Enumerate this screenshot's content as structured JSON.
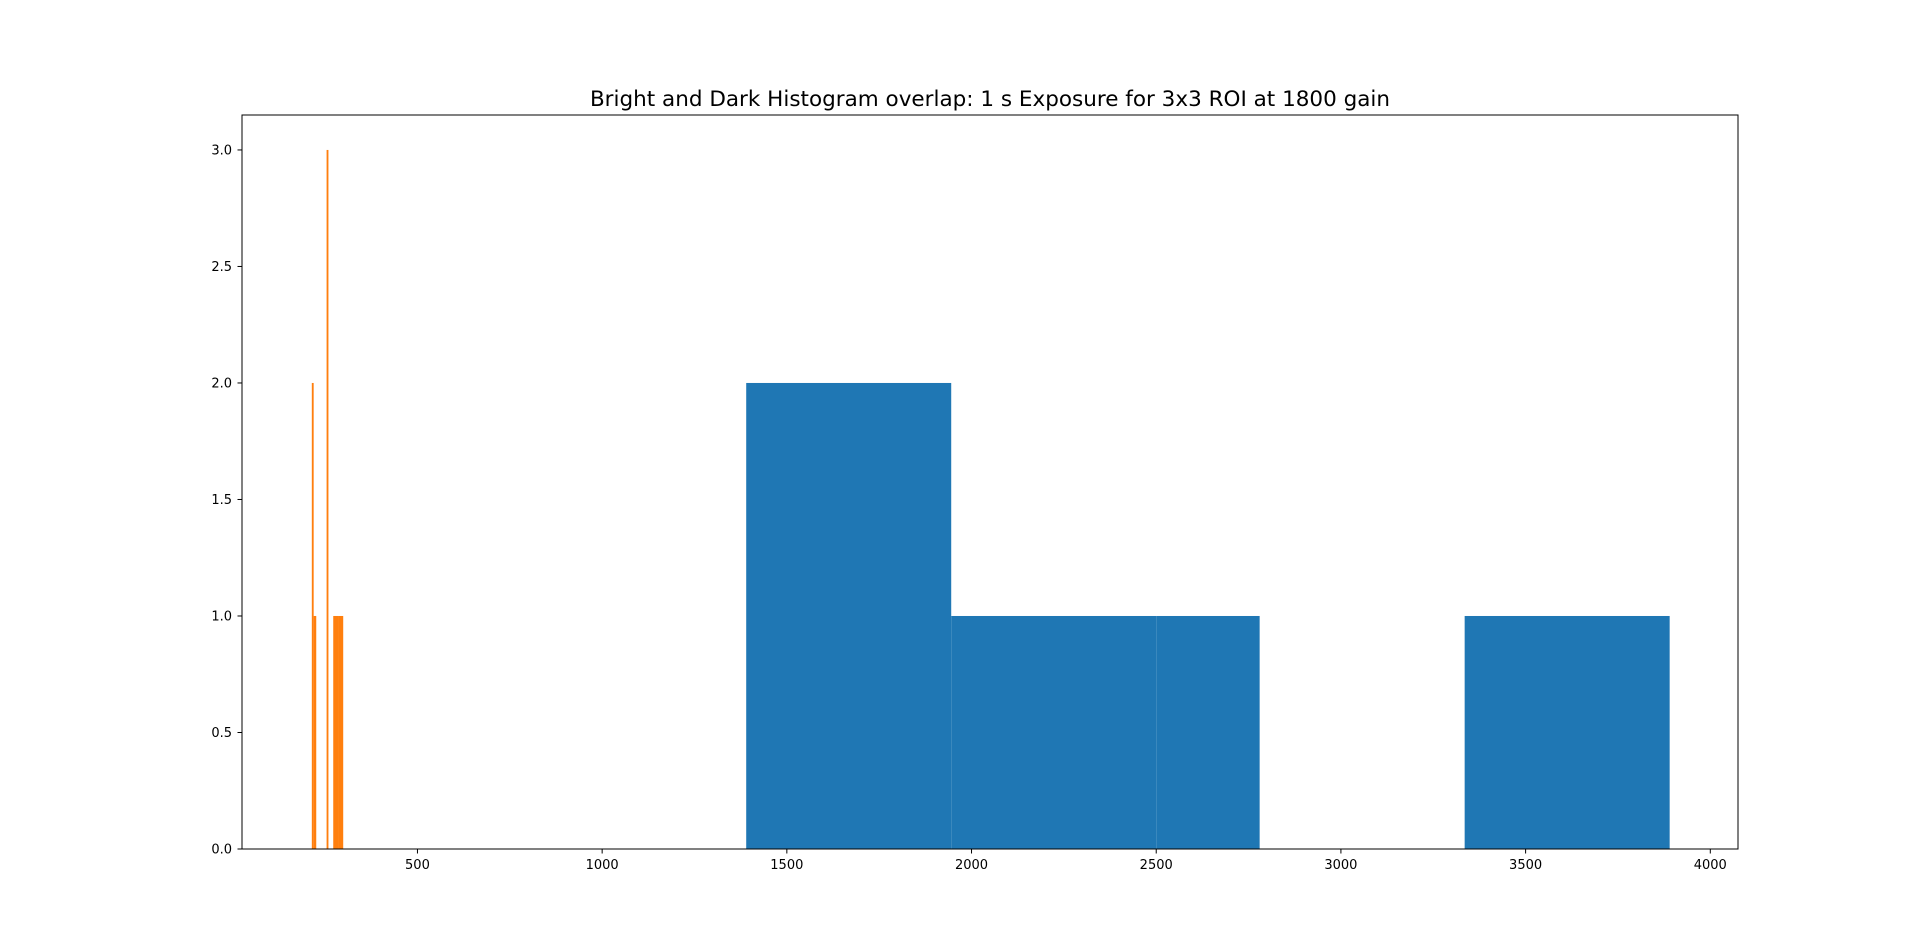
{
  "chart_data": {
    "type": "bar",
    "title": "Bright and Dark Histogram overlap: 1 s Exposure for 3x3 ROI at 1800 gain",
    "xlabel": "",
    "ylabel": "",
    "xlim": [
      25,
      4075
    ],
    "ylim": [
      0,
      3.15
    ],
    "grid": false,
    "x_ticks": [
      500,
      1000,
      1500,
      2000,
      2500,
      3000,
      3500,
      4000
    ],
    "y_ticks": [
      0.0,
      0.5,
      1.0,
      1.5,
      2.0,
      2.5,
      3.0
    ],
    "series": [
      {
        "color": "#1f77b4",
        "bins": [
          {
            "x0": 1390,
            "x1": 1945,
            "count": 2
          },
          {
            "x0": 1945,
            "x1": 2500,
            "count": 1
          },
          {
            "x0": 2500,
            "x1": 2780,
            "count": 1
          },
          {
            "x0": 2780,
            "x1": 3335,
            "count": 0
          },
          {
            "x0": 3335,
            "x1": 3890,
            "count": 1
          }
        ]
      },
      {
        "color": "#ff7f0e",
        "bins": [
          {
            "x0": 214,
            "x1": 219,
            "count": 2
          },
          {
            "x0": 219,
            "x1": 226,
            "count": 1
          },
          {
            "x0": 254,
            "x1": 259,
            "count": 3
          },
          {
            "x0": 272,
            "x1": 285,
            "count": 1
          },
          {
            "x0": 285,
            "x1": 299,
            "count": 1
          }
        ]
      }
    ]
  }
}
